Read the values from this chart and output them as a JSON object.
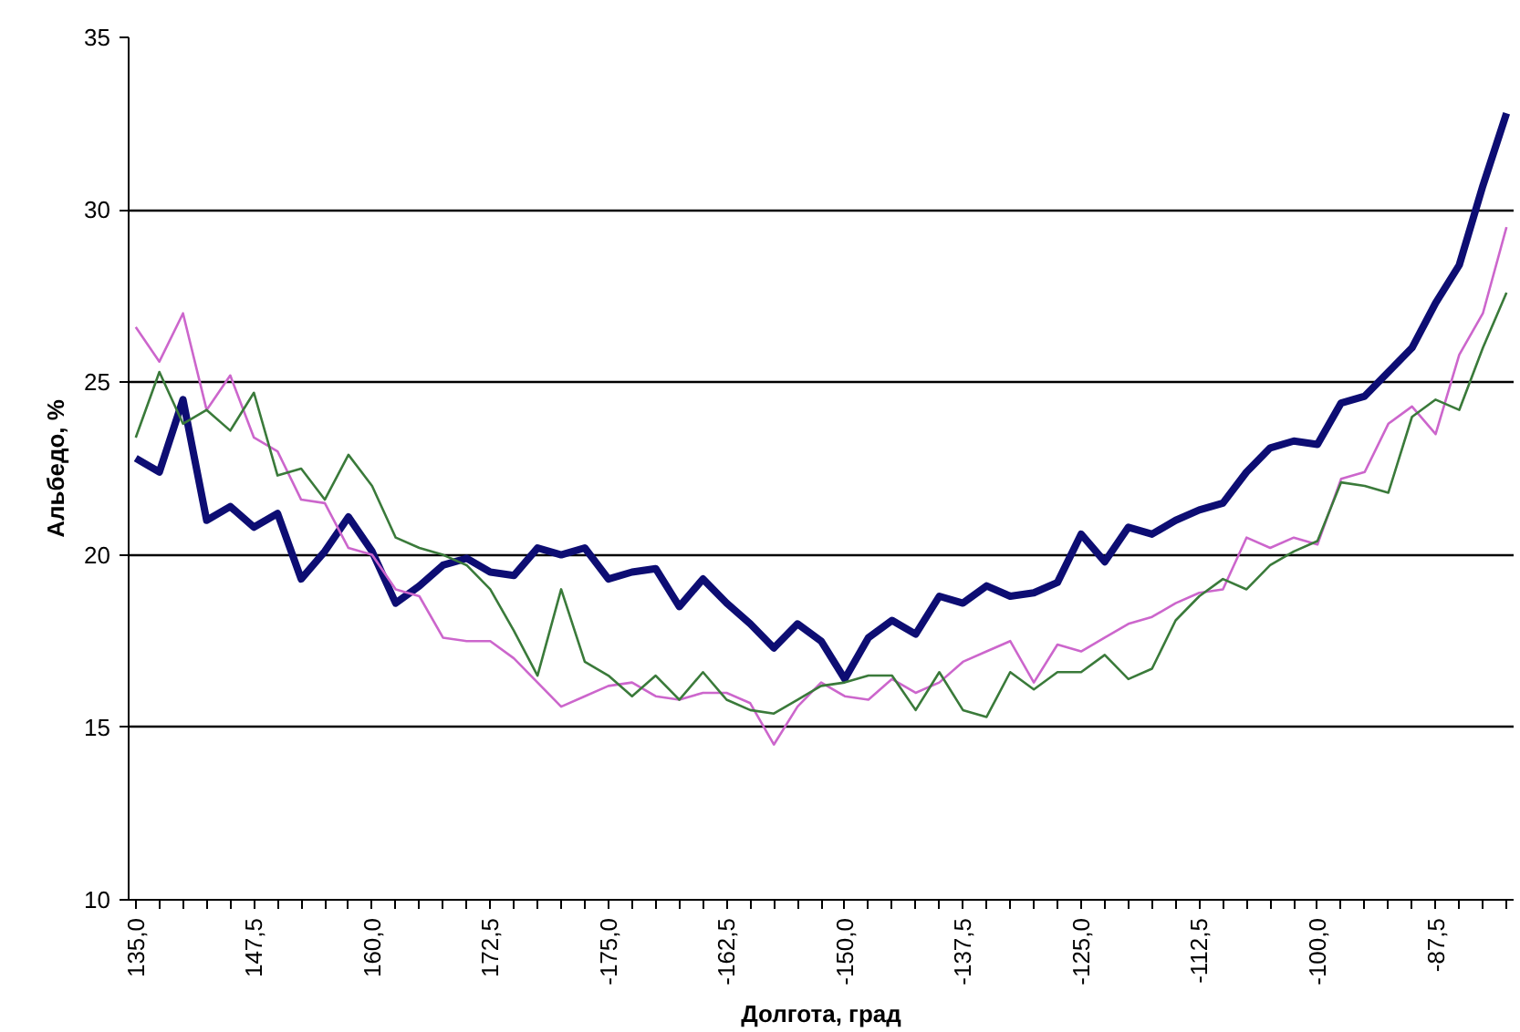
{
  "chart_data": {
    "type": "line",
    "xlabel": "Долгота, град",
    "ylabel": "Альбедо, %",
    "categories": [
      "135,0",
      null,
      null,
      null,
      null,
      "147,5",
      null,
      null,
      null,
      null,
      "160,0",
      null,
      null,
      null,
      null,
      "172,5",
      null,
      null,
      null,
      null,
      "-175,0",
      null,
      null,
      null,
      null,
      "-162,5",
      null,
      null,
      null,
      null,
      "-150,0",
      null,
      null,
      null,
      null,
      "-137,5",
      null,
      null,
      null,
      null,
      "-125,0",
      null,
      null,
      null,
      null,
      "-112,5",
      null,
      null,
      null,
      null,
      "-100,0",
      null,
      null,
      null,
      null,
      "-87,5",
      null,
      null,
      null
    ],
    "series": [
      {
        "color": "#0d0d73",
        "values": [
          22.8,
          22.4,
          24.5,
          21.0,
          21.4,
          20.8,
          21.2,
          19.3,
          20.1,
          21.1,
          20.1,
          18.6,
          19.1,
          19.7,
          19.9,
          19.5,
          19.4,
          20.2,
          20.0,
          20.2,
          19.3,
          19.5,
          19.6,
          18.5,
          19.3,
          18.6,
          18.0,
          17.3,
          18.0,
          17.5,
          16.4,
          17.6,
          18.1,
          17.7,
          18.8,
          18.6,
          19.1,
          18.8,
          18.9,
          19.2,
          20.6,
          19.8,
          20.8,
          20.6,
          21.0,
          21.3,
          21.5,
          22.4,
          23.1,
          23.3,
          23.2,
          24.4,
          24.6,
          25.3,
          26.0,
          27.3,
          28.4,
          30.7,
          32.8
        ]
      },
      {
        "color": "#cc66cc",
        "values": [
          26.6,
          25.6,
          27.0,
          24.2,
          25.2,
          23.4,
          23.0,
          21.6,
          21.5,
          20.2,
          20.0,
          19.0,
          18.8,
          17.6,
          17.5,
          17.5,
          17.0,
          16.3,
          15.6,
          15.9,
          16.2,
          16.3,
          15.9,
          15.8,
          16.0,
          16.0,
          15.7,
          14.5,
          15.6,
          16.3,
          15.9,
          15.8,
          16.4,
          16.0,
          16.3,
          16.9,
          17.2,
          17.5,
          16.3,
          17.4,
          17.2,
          17.6,
          18.0,
          18.2,
          18.6,
          18.9,
          19.0,
          20.5,
          20.2,
          20.5,
          20.3,
          22.2,
          22.4,
          23.8,
          24.3,
          23.5,
          25.8,
          27.0,
          29.5
        ]
      },
      {
        "color": "#3a7a3a",
        "values": [
          23.4,
          25.3,
          23.8,
          24.2,
          23.6,
          24.7,
          22.3,
          22.5,
          21.6,
          22.9,
          22.0,
          20.5,
          20.2,
          20.0,
          19.7,
          19.0,
          17.8,
          16.5,
          19.0,
          16.9,
          16.5,
          15.9,
          16.5,
          15.8,
          16.6,
          15.8,
          15.5,
          15.4,
          15.8,
          16.2,
          16.3,
          16.5,
          16.5,
          15.5,
          16.6,
          15.5,
          15.3,
          16.6,
          16.1,
          16.6,
          16.6,
          17.1,
          16.4,
          16.7,
          18.1,
          18.8,
          19.3,
          19.0,
          19.7,
          20.1,
          20.4,
          22.1,
          22.0,
          21.8,
          24.0,
          24.5,
          24.2,
          26.0,
          27.6
        ]
      }
    ],
    "ylim": [
      10,
      35
    ],
    "yticks": [
      10,
      15,
      20,
      25,
      30,
      35
    ],
    "grid": "y",
    "marker": "none",
    "line_style": "solid"
  }
}
